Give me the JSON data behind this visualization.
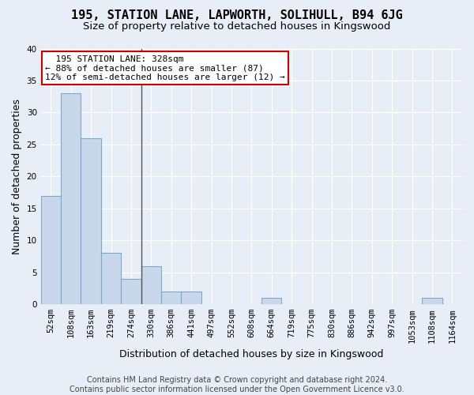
{
  "title": "195, STATION LANE, LAPWORTH, SOLIHULL, B94 6JG",
  "subtitle": "Size of property relative to detached houses in Kingswood",
  "xlabel": "Distribution of detached houses by size in Kingswood",
  "ylabel": "Number of detached properties",
  "categories": [
    "52sqm",
    "108sqm",
    "163sqm",
    "219sqm",
    "274sqm",
    "330sqm",
    "386sqm",
    "441sqm",
    "497sqm",
    "552sqm",
    "608sqm",
    "664sqm",
    "719sqm",
    "775sqm",
    "830sqm",
    "886sqm",
    "942sqm",
    "997sqm",
    "1053sqm",
    "1108sqm",
    "1164sqm"
  ],
  "values": [
    17,
    33,
    26,
    8,
    4,
    6,
    2,
    2,
    0,
    0,
    0,
    1,
    0,
    0,
    0,
    0,
    0,
    0,
    0,
    1,
    0
  ],
  "bar_color": "#c8d8ea",
  "bar_edgecolor": "#7aaac8",
  "vline_x_index": 4.5,
  "annotation_line1": "  195 STATION LANE: 328sqm",
  "annotation_line2": "← 88% of detached houses are smaller (87)",
  "annotation_line3": "12% of semi-detached houses are larger (12) →",
  "annotation_box_color": "#ffffff",
  "annotation_box_edgecolor": "#cc0000",
  "ylim": [
    0,
    40
  ],
  "yticks": [
    0,
    5,
    10,
    15,
    20,
    25,
    30,
    35,
    40
  ],
  "background_color": "#e8eef8",
  "grid_color": "#ffffff",
  "footnote": "Contains HM Land Registry data © Crown copyright and database right 2024.\nContains public sector information licensed under the Open Government Licence v3.0.",
  "title_fontsize": 11,
  "subtitle_fontsize": 9.5,
  "xlabel_fontsize": 9,
  "ylabel_fontsize": 9,
  "tick_fontsize": 7.5,
  "annotation_fontsize": 8,
  "footnote_fontsize": 7
}
